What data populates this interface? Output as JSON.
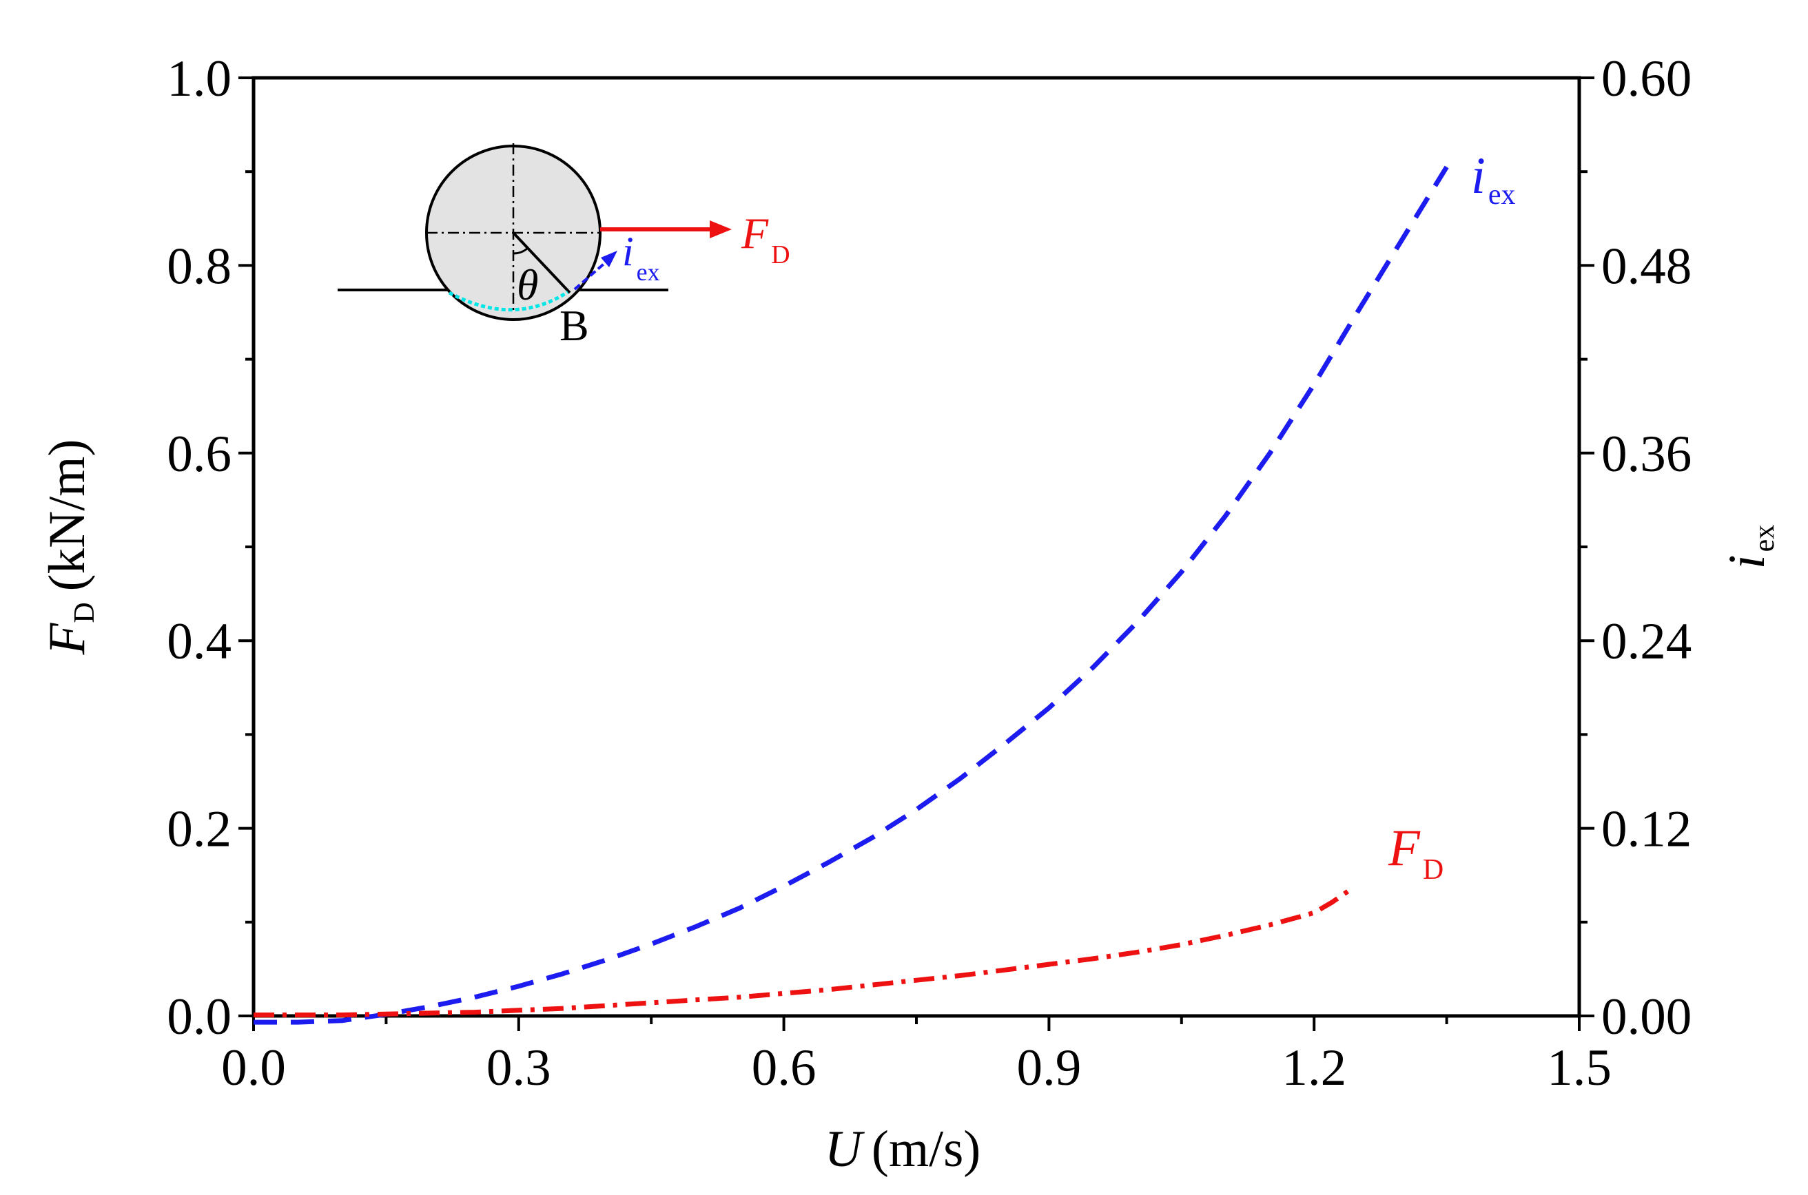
{
  "chart_data": {
    "type": "line",
    "xlabel_symbol": "U",
    "xlabel_unit": "(m/s)",
    "ylabel_symbol": "F",
    "ylabel_sub": "D",
    "ylabel_unit": "(kN/m)",
    "y2label_symbol": "i",
    "y2label_sub": "ex",
    "xlim": [
      0,
      1.5
    ],
    "ylim": [
      0,
      1.0
    ],
    "y2lim": [
      0,
      0.6
    ],
    "xticks": [
      0.0,
      0.3,
      0.6,
      0.9,
      1.2,
      1.5
    ],
    "xtick_labels": [
      "0.0",
      "0.3",
      "0.6",
      "0.9",
      "1.2",
      "1.5"
    ],
    "yticks": [
      0.0,
      0.2,
      0.4,
      0.6,
      0.8,
      1.0
    ],
    "ytick_labels": [
      "0.0",
      "0.2",
      "0.4",
      "0.6",
      "0.8",
      "1.0"
    ],
    "y2ticks": [
      0.0,
      0.12,
      0.24,
      0.36,
      0.48,
      0.6
    ],
    "y2tick_labels": [
      "0.00",
      "0.12",
      "0.24",
      "0.36",
      "0.48",
      "0.60"
    ],
    "series": [
      {
        "name": "i_ex",
        "label_symbol": "i",
        "label_sub": "ex",
        "axis": "right",
        "color": "#1c1cf0",
        "style": "dashed",
        "x": [
          0.0,
          0.05,
          0.1,
          0.15,
          0.2,
          0.25,
          0.3,
          0.35,
          0.4,
          0.45,
          0.5,
          0.55,
          0.6,
          0.65,
          0.7,
          0.75,
          0.8,
          0.85,
          0.9,
          0.95,
          1.0,
          1.05,
          1.1,
          1.15,
          1.2,
          1.25,
          1.3,
          1.35
        ],
        "values": [
          -0.004,
          -0.004,
          -0.003,
          0.001,
          0.006,
          0.012,
          0.019,
          0.027,
          0.036,
          0.046,
          0.057,
          0.069,
          0.083,
          0.098,
          0.114,
          0.132,
          0.152,
          0.174,
          0.197,
          0.223,
          0.252,
          0.284,
          0.32,
          0.36,
          0.404,
          0.451,
          0.497,
          0.543
        ]
      },
      {
        "name": "F_D",
        "label_symbol": "F",
        "label_sub": "D",
        "axis": "left",
        "color": "#ee1111",
        "style": "dash-dot",
        "x": [
          0.0,
          0.05,
          0.1,
          0.15,
          0.2,
          0.25,
          0.3,
          0.35,
          0.4,
          0.45,
          0.5,
          0.55,
          0.6,
          0.65,
          0.7,
          0.75,
          0.8,
          0.85,
          0.9,
          0.95,
          1.0,
          1.05,
          1.1,
          1.15,
          1.2,
          1.22,
          1.24
        ],
        "values": [
          0.001,
          0.001,
          0.001,
          0.002,
          0.003,
          0.004,
          0.006,
          0.008,
          0.011,
          0.014,
          0.017,
          0.02,
          0.024,
          0.028,
          0.033,
          0.038,
          0.043,
          0.049,
          0.055,
          0.061,
          0.068,
          0.076,
          0.086,
          0.097,
          0.11,
          0.121,
          0.134
        ]
      }
    ]
  },
  "inset": {
    "force_symbol": "F",
    "force_sub": "D",
    "flow_symbol": "i",
    "flow_sub": "ex",
    "angle_symbol": "θ",
    "point_label": "B"
  }
}
